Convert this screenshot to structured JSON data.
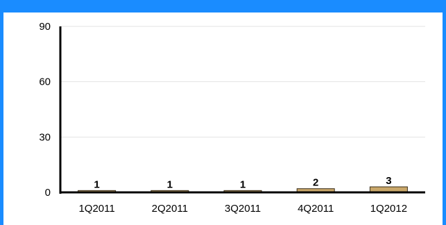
{
  "colors": {
    "frame": "#1a8cff",
    "bar_fill": "#c9a76a",
    "bar_stroke": "#3a2e1a",
    "axis": "#000000",
    "grid": "#e3e3e3"
  },
  "chart_data": {
    "type": "bar",
    "title": "",
    "xlabel": "",
    "ylabel": "",
    "categories": [
      "1Q2011",
      "2Q2011",
      "3Q2011",
      "4Q2011",
      "1Q2012"
    ],
    "values": [
      1,
      1,
      1,
      2,
      3
    ],
    "data_labels": [
      "1",
      "1",
      "1",
      "2",
      "3"
    ],
    "ylim": [
      0,
      90
    ],
    "yticks": [
      0,
      30,
      60,
      90
    ],
    "ytick_labels": [
      "0",
      "30",
      "60",
      "90"
    ],
    "grid": true,
    "legend": "none"
  }
}
